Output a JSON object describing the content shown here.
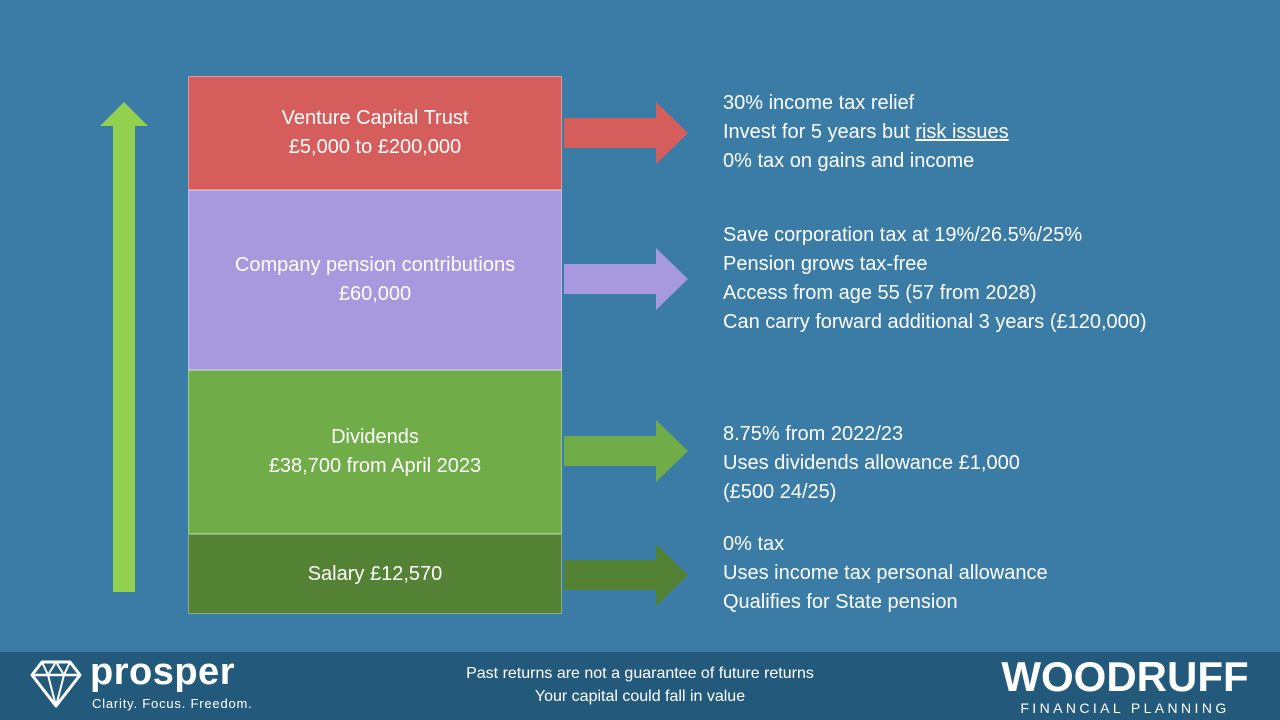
{
  "boxes": {
    "vct": {
      "title": "Venture Capital Trust",
      "value": "£5,000 to £200,000",
      "color": "#d55e5c"
    },
    "pension": {
      "title": "Company pension contributions",
      "value": "£60,000",
      "color": "#a898de"
    },
    "dividends": {
      "title": "Dividends",
      "value": "£38,700 from April 2023",
      "color": "#70ac47"
    },
    "salary": {
      "title": "Salary £12,570",
      "color": "#548235"
    }
  },
  "details": {
    "vct": [
      "30% income tax relief",
      "Invest for 5 years but ",
      "risk issues",
      "0% tax on gains and income"
    ],
    "pension": [
      "Save corporation tax at 19%/26.5%/25%",
      "Pension grows tax-free",
      "Access from age 55 (57 from 2028)",
      "Can carry forward additional 3 years (£120,000)"
    ],
    "dividends": [
      "8.75% from 2022/23",
      "Uses dividends allowance £1,000",
      "(£500 24/25)"
    ],
    "salary": [
      "0% tax",
      "Uses income tax personal allowance",
      "Qualifies for State pension"
    ]
  },
  "footer": {
    "prosper": {
      "name": "prosper",
      "tagline": "Clarity. Focus. Freedom.",
      "icon": "diamond-icon"
    },
    "disclaimer": [
      "Past returns are not a guarantee of future returns",
      "Your capital could fall in value"
    ],
    "woodruff": {
      "name": "WOODRUFF",
      "subtitle": "FINANCIAL PLANNING"
    }
  },
  "colors": {
    "background": "#3a7ca6",
    "footer": "#235a7c",
    "up_arrow": "#92d050"
  }
}
